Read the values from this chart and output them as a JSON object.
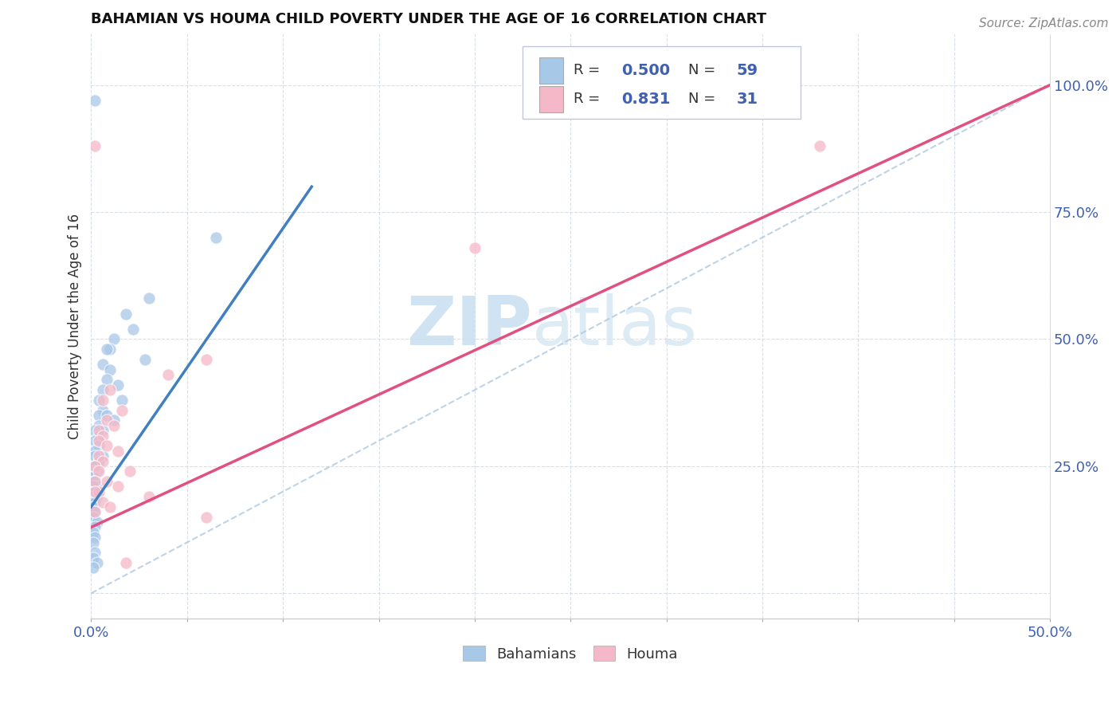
{
  "title": "BAHAMIAN VS HOUMA CHILD POVERTY UNDER THE AGE OF 16 CORRELATION CHART",
  "source_text": "Source: ZipAtlas.com",
  "ylabel": "Child Poverty Under the Age of 16",
  "xlim": [
    0.0,
    0.5
  ],
  "ylim": [
    -0.05,
    1.1
  ],
  "xtick_positions": [
    0.0,
    0.05,
    0.1,
    0.15,
    0.2,
    0.25,
    0.3,
    0.35,
    0.4,
    0.45,
    0.5
  ],
  "xticklabels": [
    "0.0%",
    "",
    "",
    "",
    "",
    "",
    "",
    "",
    "",
    "",
    "50.0%"
  ],
  "ytick_positions": [
    0.0,
    0.25,
    0.5,
    0.75,
    1.0
  ],
  "ytick_labels": [
    "",
    "25.0%",
    "50.0%",
    "75.0%",
    "100.0%"
  ],
  "blue_color": "#a8c8e8",
  "pink_color": "#f4b8c8",
  "blue_line_color": "#4080c0",
  "pink_line_color": "#e05080",
  "r_blue": 0.5,
  "n_blue": 59,
  "r_pink": 0.831,
  "n_pink": 31,
  "legend_label_blue": "Bahamians",
  "legend_label_pink": "Houma",
  "watermark_zip": "ZIP",
  "watermark_atlas": "atlas",
  "blue_line": [
    [
      0.0,
      0.17
    ],
    [
      0.115,
      0.8
    ]
  ],
  "pink_line": [
    [
      0.0,
      0.13
    ],
    [
      0.5,
      1.0
    ]
  ],
  "dashed_line": [
    [
      0.0,
      0.0
    ],
    [
      0.5,
      1.0
    ]
  ],
  "blue_scatter": [
    [
      0.002,
      0.97
    ],
    [
      0.065,
      0.7
    ],
    [
      0.03,
      0.58
    ],
    [
      0.018,
      0.55
    ],
    [
      0.022,
      0.52
    ],
    [
      0.012,
      0.5
    ],
    [
      0.01,
      0.48
    ],
    [
      0.008,
      0.48
    ],
    [
      0.028,
      0.46
    ],
    [
      0.006,
      0.45
    ],
    [
      0.01,
      0.44
    ],
    [
      0.008,
      0.42
    ],
    [
      0.014,
      0.41
    ],
    [
      0.006,
      0.4
    ],
    [
      0.004,
      0.38
    ],
    [
      0.016,
      0.38
    ],
    [
      0.006,
      0.36
    ],
    [
      0.004,
      0.35
    ],
    [
      0.008,
      0.35
    ],
    [
      0.012,
      0.34
    ],
    [
      0.004,
      0.33
    ],
    [
      0.006,
      0.32
    ],
    [
      0.002,
      0.32
    ],
    [
      0.004,
      0.31
    ],
    [
      0.002,
      0.3
    ],
    [
      0.004,
      0.29
    ],
    [
      0.002,
      0.28
    ],
    [
      0.006,
      0.27
    ],
    [
      0.002,
      0.27
    ],
    [
      0.004,
      0.26
    ],
    [
      0.002,
      0.25
    ],
    [
      0.002,
      0.25
    ],
    [
      0.001,
      0.24
    ],
    [
      0.003,
      0.24
    ],
    [
      0.002,
      0.23
    ],
    [
      0.001,
      0.23
    ],
    [
      0.002,
      0.22
    ],
    [
      0.001,
      0.22
    ],
    [
      0.003,
      0.21
    ],
    [
      0.001,
      0.21
    ],
    [
      0.001,
      0.2
    ],
    [
      0.002,
      0.2
    ],
    [
      0.001,
      0.19
    ],
    [
      0.003,
      0.19
    ],
    [
      0.001,
      0.18
    ],
    [
      0.002,
      0.18
    ],
    [
      0.001,
      0.17
    ],
    [
      0.001,
      0.16
    ],
    [
      0.002,
      0.16
    ],
    [
      0.001,
      0.15
    ],
    [
      0.003,
      0.14
    ],
    [
      0.002,
      0.13
    ],
    [
      0.001,
      0.12
    ],
    [
      0.002,
      0.11
    ],
    [
      0.001,
      0.1
    ],
    [
      0.002,
      0.08
    ],
    [
      0.001,
      0.07
    ],
    [
      0.003,
      0.06
    ],
    [
      0.001,
      0.05
    ]
  ],
  "pink_scatter": [
    [
      0.002,
      0.88
    ],
    [
      0.38,
      0.88
    ],
    [
      0.2,
      0.68
    ],
    [
      0.06,
      0.46
    ],
    [
      0.04,
      0.43
    ],
    [
      0.01,
      0.4
    ],
    [
      0.006,
      0.38
    ],
    [
      0.016,
      0.36
    ],
    [
      0.008,
      0.34
    ],
    [
      0.012,
      0.33
    ],
    [
      0.004,
      0.32
    ],
    [
      0.006,
      0.31
    ],
    [
      0.004,
      0.3
    ],
    [
      0.008,
      0.29
    ],
    [
      0.014,
      0.28
    ],
    [
      0.004,
      0.27
    ],
    [
      0.006,
      0.26
    ],
    [
      0.002,
      0.25
    ],
    [
      0.02,
      0.24
    ],
    [
      0.004,
      0.24
    ],
    [
      0.008,
      0.22
    ],
    [
      0.002,
      0.22
    ],
    [
      0.014,
      0.21
    ],
    [
      0.004,
      0.2
    ],
    [
      0.002,
      0.2
    ],
    [
      0.03,
      0.19
    ],
    [
      0.006,
      0.18
    ],
    [
      0.01,
      0.17
    ],
    [
      0.002,
      0.16
    ],
    [
      0.06,
      0.15
    ],
    [
      0.018,
      0.06
    ]
  ]
}
